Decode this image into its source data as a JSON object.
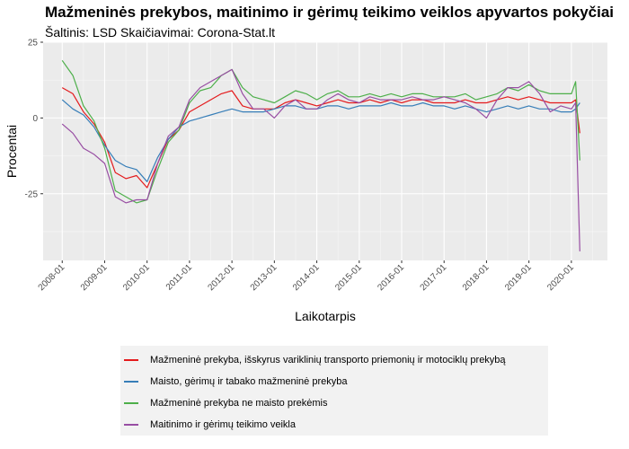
{
  "chart_data": {
    "type": "line",
    "title": "Mažmeninės prekybos, maitinimo ir gėrimų teikimo veiklos apyvartos pokyčiai",
    "subtitle": "Šaltinis: LSD Skaičiavimai: Corona-Stat.lt",
    "xlabel": "Laikotarpis",
    "ylabel": "Procentai",
    "ylim": [
      -47,
      25
    ],
    "yticks": [
      25,
      0,
      -25
    ],
    "ytick_labels": [
      "25",
      "0",
      "-25"
    ],
    "xlim": [
      2007.55,
      2020.85
    ],
    "xticks": [
      2008,
      2009,
      2010,
      2011,
      2012,
      2013,
      2014,
      2015,
      2016,
      2017,
      2018,
      2019,
      2020
    ],
    "xtick_labels": [
      "2008-01",
      "2009-01",
      "2010-01",
      "2011-01",
      "2012-01",
      "2013-01",
      "2014-01",
      "2015-01",
      "2016-01",
      "2017-01",
      "2018-01",
      "2019-01",
      "2020-01"
    ],
    "grid": true,
    "legend_position": "bottom",
    "series": [
      {
        "name": "Mažmeninė prekyba, išskyrus variklinių transporto priemonių ir motociklų prekybą",
        "color": "#e41a1c",
        "x": [
          2008.0,
          2008.25,
          2008.5,
          2008.75,
          2009.0,
          2009.25,
          2009.5,
          2009.75,
          2010.0,
          2010.25,
          2010.5,
          2010.75,
          2011.0,
          2011.25,
          2011.5,
          2011.75,
          2012.0,
          2012.25,
          2012.5,
          2012.75,
          2013.0,
          2013.25,
          2013.5,
          2013.75,
          2014.0,
          2014.25,
          2014.5,
          2014.75,
          2015.0,
          2015.25,
          2015.5,
          2015.75,
          2016.0,
          2016.25,
          2016.5,
          2016.75,
          2017.0,
          2017.25,
          2017.5,
          2017.75,
          2018.0,
          2018.25,
          2018.5,
          2018.75,
          2019.0,
          2019.25,
          2019.5,
          2019.75,
          2020.0,
          2020.1,
          2020.2
        ],
        "y": [
          10,
          8,
          2,
          -2,
          -8,
          -18,
          -20,
          -19,
          -23,
          -15,
          -7,
          -4,
          2,
          4,
          6,
          8,
          9,
          4,
          3,
          3,
          3,
          5,
          6,
          5,
          4,
          5,
          6,
          5,
          5,
          6,
          5,
          6,
          5,
          6,
          6,
          5,
          5,
          5,
          6,
          5,
          5,
          6,
          7,
          6,
          7,
          6,
          5,
          5,
          5,
          6,
          -5
        ]
      },
      {
        "name": "Maisto, gėrimų ir tabako mažmeninė prekyba",
        "color": "#377eb8",
        "x": [
          2008.0,
          2008.25,
          2008.5,
          2008.75,
          2009.0,
          2009.25,
          2009.5,
          2009.75,
          2010.0,
          2010.25,
          2010.5,
          2010.75,
          2011.0,
          2011.25,
          2011.5,
          2011.75,
          2012.0,
          2012.25,
          2012.5,
          2012.75,
          2013.0,
          2013.25,
          2013.5,
          2013.75,
          2014.0,
          2014.25,
          2014.5,
          2014.75,
          2015.0,
          2015.25,
          2015.5,
          2015.75,
          2016.0,
          2016.25,
          2016.5,
          2016.75,
          2017.0,
          2017.25,
          2017.5,
          2017.75,
          2018.0,
          2018.25,
          2018.5,
          2018.75,
          2019.0,
          2019.25,
          2019.5,
          2019.75,
          2020.0,
          2020.1,
          2020.2
        ],
        "y": [
          6,
          3,
          1,
          -3,
          -9,
          -14,
          -16,
          -17,
          -21,
          -13,
          -7,
          -3,
          -1,
          0,
          1,
          2,
          3,
          2,
          2,
          2,
          3,
          4,
          4,
          3,
          3,
          4,
          4,
          3,
          4,
          4,
          4,
          5,
          4,
          4,
          5,
          4,
          4,
          3,
          4,
          3,
          2,
          3,
          4,
          3,
          4,
          3,
          3,
          2,
          2,
          3,
          5
        ]
      },
      {
        "name": "Mažmeninė prekyba ne maisto prekėmis",
        "color": "#4daf4a",
        "x": [
          2008.0,
          2008.25,
          2008.5,
          2008.75,
          2009.0,
          2009.25,
          2009.5,
          2009.75,
          2010.0,
          2010.25,
          2010.5,
          2010.75,
          2011.0,
          2011.25,
          2011.5,
          2011.75,
          2012.0,
          2012.25,
          2012.5,
          2012.75,
          2013.0,
          2013.25,
          2013.5,
          2013.75,
          2014.0,
          2014.25,
          2014.5,
          2014.75,
          2015.0,
          2015.25,
          2015.5,
          2015.75,
          2016.0,
          2016.25,
          2016.5,
          2016.75,
          2017.0,
          2017.25,
          2017.5,
          2017.75,
          2018.0,
          2018.25,
          2018.5,
          2018.75,
          2019.0,
          2019.25,
          2019.5,
          2019.75,
          2020.0,
          2020.1,
          2020.2
        ],
        "y": [
          19,
          14,
          4,
          -1,
          -10,
          -24,
          -26,
          -28,
          -27,
          -17,
          -8,
          -4,
          5,
          9,
          10,
          14,
          16,
          10,
          7,
          6,
          5,
          7,
          9,
          8,
          6,
          8,
          9,
          7,
          7,
          8,
          7,
          8,
          7,
          8,
          8,
          7,
          7,
          7,
          8,
          6,
          7,
          8,
          10,
          9,
          11,
          9,
          8,
          8,
          8,
          12,
          -14
        ]
      },
      {
        "name": "Maitinimo ir gėrimų teikimo veikla",
        "color": "#984ea3",
        "x": [
          2008.0,
          2008.25,
          2008.5,
          2008.75,
          2009.0,
          2009.25,
          2009.5,
          2009.75,
          2010.0,
          2010.25,
          2010.5,
          2010.75,
          2011.0,
          2011.25,
          2011.5,
          2011.75,
          2012.0,
          2012.25,
          2012.5,
          2012.75,
          2013.0,
          2013.25,
          2013.5,
          2013.75,
          2014.0,
          2014.25,
          2014.5,
          2014.75,
          2015.0,
          2015.25,
          2015.5,
          2015.75,
          2016.0,
          2016.25,
          2016.5,
          2016.75,
          2017.0,
          2017.25,
          2017.5,
          2017.75,
          2018.0,
          2018.25,
          2018.5,
          2018.75,
          2019.0,
          2019.25,
          2019.5,
          2019.75,
          2020.0,
          2020.1,
          2020.2
        ],
        "y": [
          -2,
          -5,
          -10,
          -12,
          -15,
          -26,
          -28,
          -27,
          -27,
          -15,
          -6,
          -3,
          6,
          10,
          12,
          14,
          16,
          8,
          3,
          3,
          0,
          4,
          6,
          3,
          3,
          6,
          8,
          6,
          5,
          7,
          6,
          6,
          6,
          7,
          6,
          6,
          7,
          6,
          5,
          3,
          0,
          6,
          10,
          10,
          12,
          8,
          2,
          4,
          3,
          5,
          -44
        ]
      }
    ]
  }
}
